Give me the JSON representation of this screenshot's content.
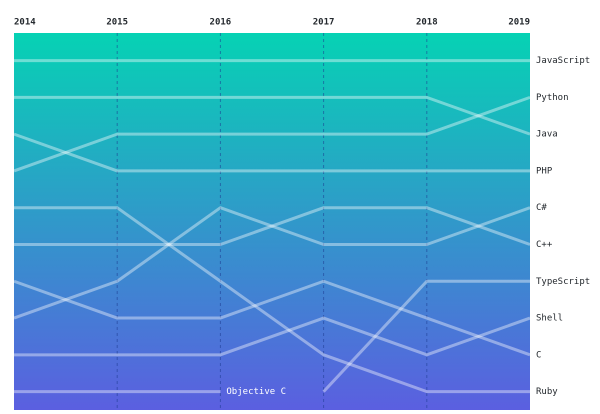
{
  "chart_data": {
    "type": "bump",
    "categories": [
      "2014",
      "2015",
      "2016",
      "2017",
      "2018",
      "2019"
    ],
    "ylim": [
      10.5,
      0.25
    ],
    "line_color": "#ffffff",
    "gradient": [
      "#06d2b4",
      "#5b5fe0"
    ],
    "series": [
      {
        "name": "JavaScript",
        "values": [
          1,
          1,
          1,
          1,
          1,
          1
        ]
      },
      {
        "name": "Python",
        "values": [
          4,
          3,
          3,
          3,
          3,
          2
        ]
      },
      {
        "name": "Java",
        "values": [
          2,
          2,
          2,
          2,
          2,
          3
        ]
      },
      {
        "name": "PHP",
        "values": [
          3,
          4,
          4,
          4,
          4,
          4
        ]
      },
      {
        "name": "C#",
        "values": [
          8,
          7,
          5,
          6,
          6,
          5
        ]
      },
      {
        "name": "C++",
        "values": [
          6,
          6,
          6,
          5,
          5,
          6
        ]
      },
      {
        "name": "TypeScript",
        "values": [
          null,
          null,
          null,
          10,
          7,
          7
        ]
      },
      {
        "name": "Shell",
        "values": [
          9,
          9,
          9,
          8,
          9,
          8
        ]
      },
      {
        "name": "C",
        "values": [
          7,
          8,
          8,
          7,
          8,
          9
        ]
      },
      {
        "name": "Ruby",
        "values": [
          5,
          5,
          7,
          9,
          10,
          10
        ]
      },
      {
        "name": "Objective C",
        "values": [
          10,
          10,
          10,
          null,
          null,
          null
        ]
      }
    ]
  }
}
